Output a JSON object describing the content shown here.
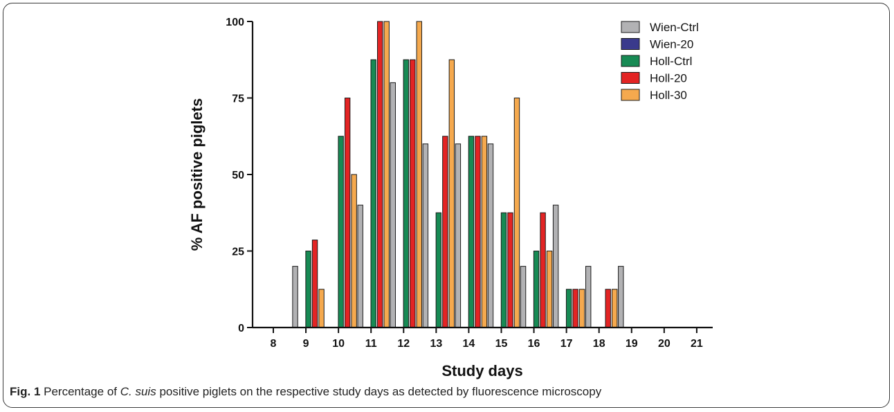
{
  "figure": {
    "caption_label": "Fig. 1",
    "caption_pre": "Percentage of",
    "caption_em": "C. suis",
    "caption_post": "positive piglets on the respective study days as detected by fluorescence microscopy"
  },
  "colors": {
    "Wien-Ctrl": "#b2b2b4",
    "Wien-20": "#3a3a8c",
    "Holl-Ctrl": "#178a54",
    "Holl-20": "#e32424",
    "Holl-30": "#f5a94e"
  },
  "chart_data": {
    "type": "bar",
    "title": "",
    "xlabel": "Study days",
    "ylabel": "% AF positive piglets",
    "ylim": [
      0,
      100
    ],
    "yticks": [
      0,
      25,
      50,
      75,
      100
    ],
    "categories": [
      "8",
      "9",
      "10",
      "11",
      "12",
      "13",
      "14",
      "15",
      "16",
      "17",
      "18",
      "19",
      "20",
      "21"
    ],
    "legend_position": "top-right",
    "grid": false,
    "series": [
      {
        "name": "Wien-Ctrl",
        "values": [
          0,
          20,
          0,
          40,
          80,
          60,
          60,
          60,
          20,
          40,
          20,
          20,
          0,
          0
        ]
      },
      {
        "name": "Wien-20",
        "values": [
          0,
          0,
          0,
          0,
          0,
          0,
          0,
          0,
          0,
          0,
          0,
          0,
          0,
          0
        ]
      },
      {
        "name": "Holl-Ctrl",
        "values": [
          0,
          25,
          62.5,
          87.5,
          87.5,
          37.5,
          62.5,
          37.5,
          25,
          12.5,
          0,
          0,
          0,
          0
        ]
      },
      {
        "name": "Holl-20",
        "values": [
          0,
          28.6,
          75,
          100,
          87.5,
          62.5,
          62.5,
          37.5,
          37.5,
          12.5,
          12.5,
          0,
          0,
          0
        ]
      },
      {
        "name": "Holl-30",
        "values": [
          0,
          12.5,
          50,
          100,
          100,
          87.5,
          62.5,
          75,
          25,
          12.5,
          12.5,
          0,
          0,
          0
        ]
      }
    ]
  }
}
